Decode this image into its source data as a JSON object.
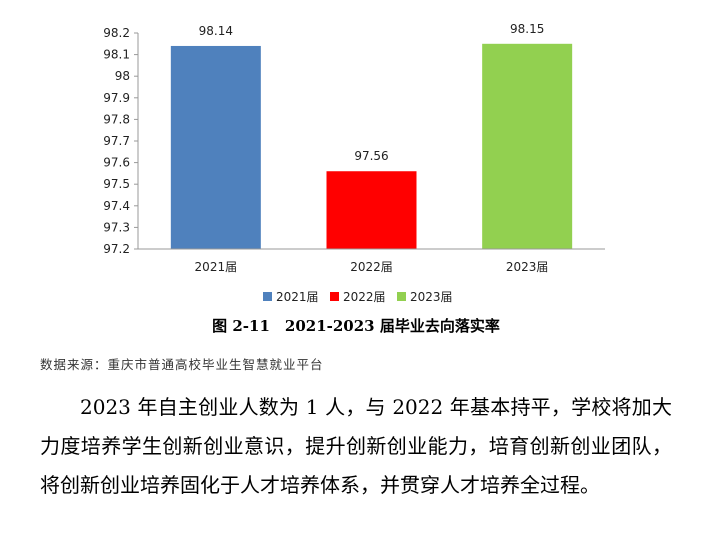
{
  "chart_data": {
    "type": "bar",
    "categories": [
      "2021届",
      "2022届",
      "2023届"
    ],
    "values": [
      98.14,
      97.56,
      98.15
    ],
    "data_labels": [
      "98.14",
      "97.56",
      "98.15"
    ],
    "colors": [
      "#4f81bd",
      "#ff0000",
      "#92d050"
    ],
    "ylim": [
      97.2,
      98.2
    ],
    "yticks": [
      "97.2",
      "97.3",
      "97.4",
      "97.5",
      "97.6",
      "97.7",
      "97.8",
      "97.9",
      "98",
      "98.1",
      "98.2"
    ],
    "grid": false,
    "legend_position": "bottom",
    "legend": [
      "2021届",
      "2022届",
      "2023届"
    ]
  },
  "caption": "图 2-11　2021-2023 届毕业去向落实率",
  "source": "数据来源：重庆市普通高校毕业生智慧就业平台",
  "paragraph": "2023 年自主创业人数为 1 人，与 2022 年基本持平，学校将加大力度培养学生创新创业意识，提升创新创业能力，培育创新创业团队，将创新创业培养固化于人才培养体系，并贯穿人才培养全过程。"
}
